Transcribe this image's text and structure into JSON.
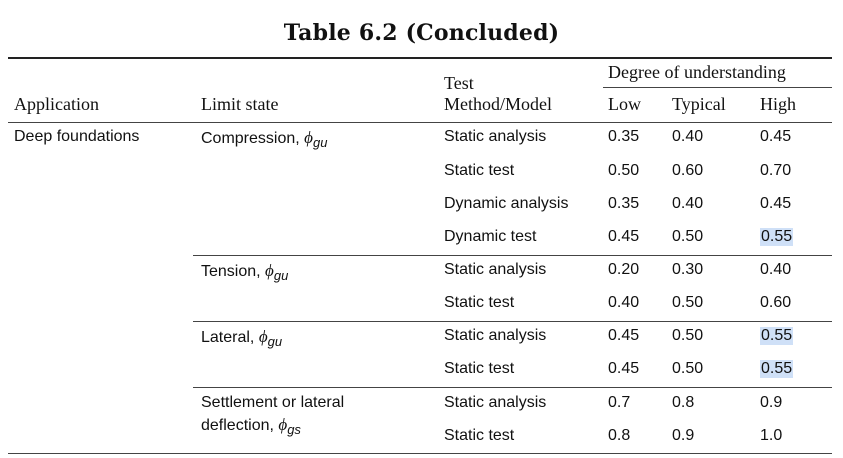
{
  "title": "Table 6.2 (Concluded)",
  "headers": {
    "application": "Application",
    "limit_state": "Limit state",
    "test_line1": "Test",
    "test_line2": "Method/Model",
    "degree": "Degree of understanding",
    "low": "Low",
    "typical": "Typical",
    "high": "High"
  },
  "application": "Deep foundations",
  "limit_states": [
    {
      "label": "Compression, ",
      "phi": "ϕ",
      "sub": "gu"
    },
    {
      "label": "Tension, ",
      "phi": "ϕ",
      "sub": "gu"
    },
    {
      "label": "Lateral, ",
      "phi": "ϕ",
      "sub": "gu"
    },
    {
      "label1": "Settlement or lateral",
      "label2": "deflection, ",
      "phi": "ϕ",
      "sub": "gs"
    }
  ],
  "rows": [
    {
      "method": "Static analysis",
      "low": "0.35",
      "typical": "0.40",
      "high": "0.45",
      "high_highlight": false
    },
    {
      "method": "Static test",
      "low": "0.50",
      "typical": "0.60",
      "high": "0.70",
      "high_highlight": false
    },
    {
      "method": "Dynamic analysis",
      "low": "0.35",
      "typical": "0.40",
      "high": "0.45",
      "high_highlight": false
    },
    {
      "method": "Dynamic test",
      "low": "0.45",
      "typical": "0.50",
      "high": "0.55",
      "high_highlight": true
    },
    {
      "method": "Static analysis",
      "low": "0.20",
      "typical": "0.30",
      "high": "0.40",
      "high_highlight": false
    },
    {
      "method": "Static test",
      "low": "0.40",
      "typical": "0.50",
      "high": "0.60",
      "high_highlight": false
    },
    {
      "method": "Static analysis",
      "low": "0.45",
      "typical": "0.50",
      "high": "0.55",
      "high_highlight": true
    },
    {
      "method": "Static test",
      "low": "0.45",
      "typical": "0.50",
      "high": "0.55",
      "high_highlight": true
    },
    {
      "method": "Static analysis",
      "low": "0.7",
      "typical": "0.8",
      "high": "0.9",
      "high_highlight": false
    },
    {
      "method": "Static test",
      "low": "0.8",
      "typical": "0.9",
      "high": "1.0",
      "high_highlight": false
    }
  ],
  "colors": {
    "highlight": "#cfe0f7",
    "rule": "#444444"
  }
}
